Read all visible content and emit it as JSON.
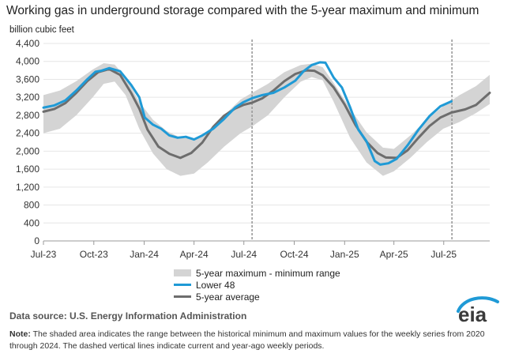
{
  "title": "Working gas in underground  storage compared with the 5-year maximum  and minimum",
  "unit_label": "billion cubic feet",
  "legend": {
    "range": "5-year maximum - minimum range",
    "lower48": "Lower 48",
    "avg": "5-year average"
  },
  "source_prefix": "Data source:",
  "source": "U.S. Energy Information Administration",
  "note_label": "Note:",
  "note": "The shaded area indicates the range between the historical minimum and maximum values for the weekly series from 2020 through 2024. The dashed vertical lines indicate current and year-ago weekly periods.",
  "logo_text": "eia",
  "colors": {
    "lower48": "#1f9ad6",
    "avg": "#6d6d6d",
    "band": "#d4d4d4"
  },
  "chart_data": {
    "type": "line",
    "ylim": [
      0,
      4400
    ],
    "yticks": [
      0,
      400,
      800,
      1200,
      1600,
      2000,
      2400,
      2800,
      3200,
      3600,
      4000,
      4400
    ],
    "ytick_labels": [
      "0",
      "400",
      "800",
      "1,200",
      "1,600",
      "2,000",
      "2,400",
      "2,800",
      "3,200",
      "3,600",
      "4,000",
      "4,400"
    ],
    "xticks": [
      {
        "x": 0,
        "label": "Jul-23"
      },
      {
        "x": 92,
        "label": "Oct-23"
      },
      {
        "x": 184,
        "label": "Jan-24"
      },
      {
        "x": 275,
        "label": "Apr-24"
      },
      {
        "x": 366,
        "label": "Jul-24"
      },
      {
        "x": 458,
        "label": "Oct-24"
      },
      {
        "x": 550,
        "label": "Jan-25"
      },
      {
        "x": 640,
        "label": "Apr-25"
      },
      {
        "x": 731,
        "label": "Jul-25"
      }
    ],
    "xlim": [
      0,
      815
    ],
    "dashed_lines": [
      381,
      746
    ],
    "series": [
      {
        "name": "5-year maximum - minimum range",
        "kind": "band",
        "x": [
          0,
          30,
          60,
          90,
          110,
          130,
          150,
          175,
          200,
          225,
          250,
          275,
          300,
          330,
          360,
          381,
          410,
          440,
          470,
          490,
          510,
          530,
          560,
          590,
          620,
          640,
          670,
          700,
          730,
          760,
          790,
          815
        ],
        "upper": [
          3250,
          3350,
          3560,
          3820,
          3960,
          3930,
          3650,
          3100,
          2700,
          2450,
          2300,
          2270,
          2450,
          2800,
          3150,
          3300,
          3500,
          3760,
          3920,
          3950,
          3870,
          3520,
          2950,
          2420,
          2080,
          2050,
          2350,
          2700,
          3000,
          3250,
          3450,
          3700
        ],
        "lower": [
          2400,
          2500,
          2800,
          3200,
          3500,
          3550,
          3250,
          2500,
          1950,
          1600,
          1450,
          1500,
          1750,
          2100,
          2400,
          2550,
          2800,
          3200,
          3550,
          3650,
          3580,
          3100,
          2300,
          1750,
          1450,
          1550,
          1850,
          2200,
          2500,
          2650,
          2850,
          3050
        ]
      },
      {
        "name": "Lower 48",
        "kind": "line",
        "x": [
          0,
          20,
          40,
          60,
          80,
          95,
          105,
          120,
          140,
          160,
          175,
          185,
          200,
          215,
          230,
          245,
          260,
          275,
          290,
          310,
          330,
          350,
          365,
          381,
          400,
          420,
          440,
          460,
          475,
          490,
          505,
          515,
          530,
          545,
          560,
          575,
          590,
          605,
          615,
          630,
          645,
          665,
          685,
          705,
          725,
          745
        ],
        "y": [
          2970,
          3020,
          3130,
          3350,
          3600,
          3770,
          3790,
          3850,
          3780,
          3480,
          3200,
          2750,
          2590,
          2500,
          2350,
          2300,
          2320,
          2260,
          2350,
          2500,
          2720,
          2970,
          3090,
          3180,
          3250,
          3300,
          3420,
          3570,
          3780,
          3920,
          3980,
          3970,
          3640,
          3420,
          2980,
          2480,
          2220,
          1780,
          1700,
          1730,
          1830,
          2130,
          2480,
          2780,
          3000,
          3110
        ]
      },
      {
        "name": "5-year average",
        "kind": "line",
        "x": [
          0,
          20,
          40,
          60,
          80,
          100,
          120,
          140,
          160,
          175,
          190,
          210,
          230,
          250,
          270,
          290,
          310,
          330,
          350,
          365,
          381,
          400,
          420,
          440,
          460,
          480,
          495,
          510,
          530,
          550,
          570,
          590,
          610,
          625,
          645,
          665,
          685,
          705,
          725,
          745,
          770,
          790,
          815
        ],
        "y": [
          2880,
          2940,
          3070,
          3300,
          3560,
          3760,
          3830,
          3700,
          3300,
          2950,
          2480,
          2100,
          1940,
          1850,
          1960,
          2190,
          2540,
          2790,
          2950,
          3030,
          3080,
          3180,
          3350,
          3560,
          3720,
          3800,
          3790,
          3690,
          3420,
          3040,
          2580,
          2210,
          1960,
          1860,
          1850,
          2020,
          2300,
          2560,
          2750,
          2860,
          2930,
          3030,
          3300
        ]
      }
    ]
  }
}
